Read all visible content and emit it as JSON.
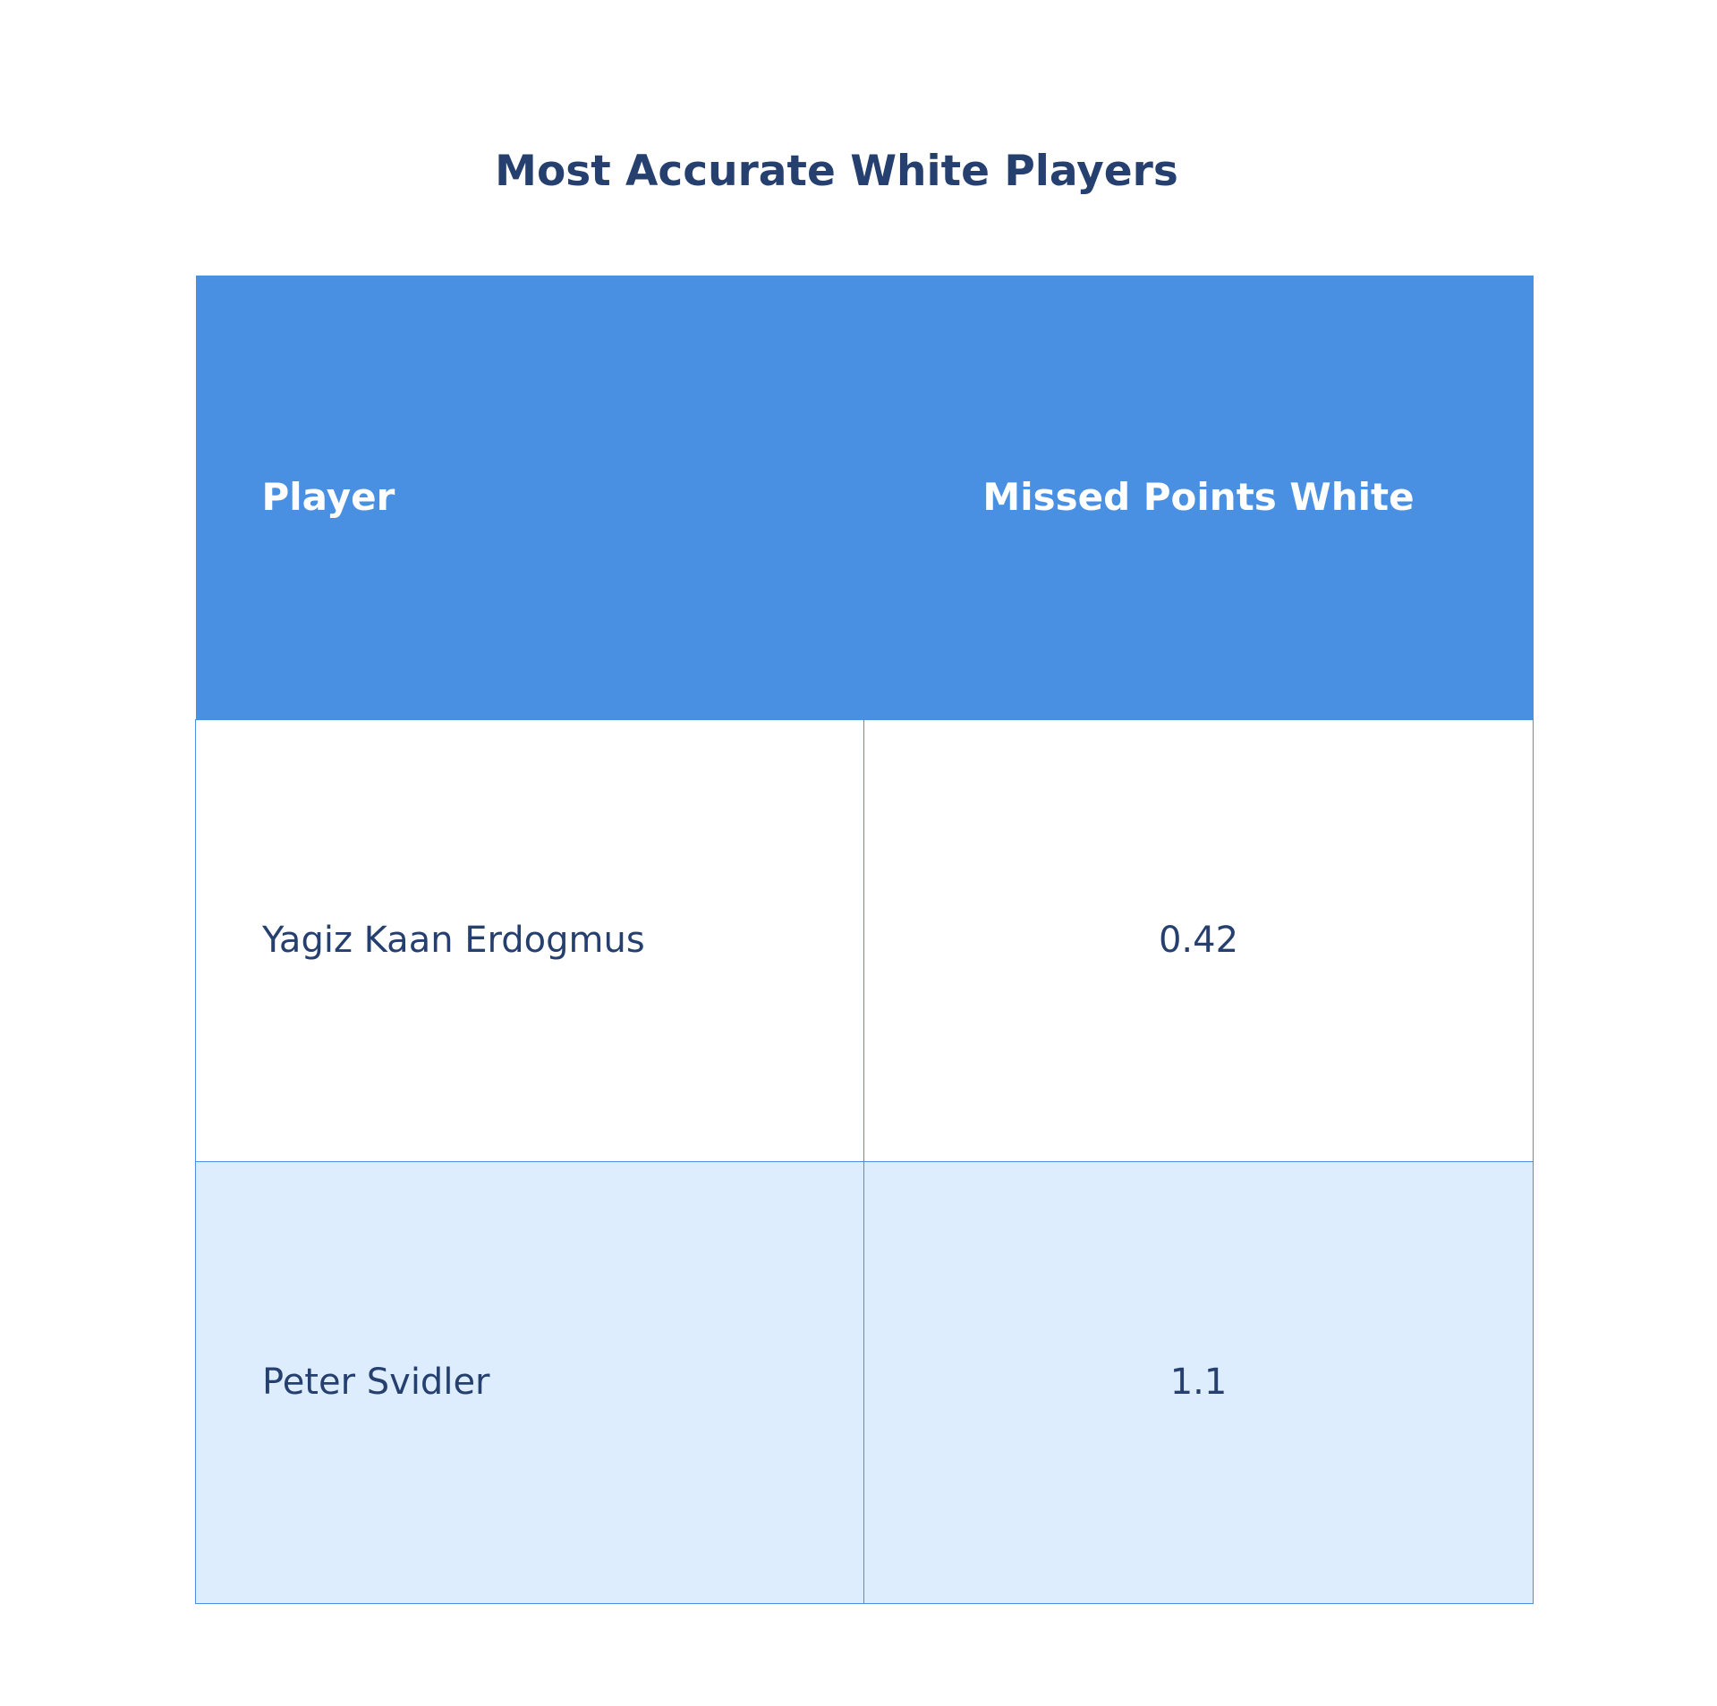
{
  "chart_data": {
    "type": "table",
    "title": "Most Accurate White Players",
    "columns": [
      "Player",
      "Missed Points White"
    ],
    "rows": [
      {
        "player": "Yagiz Kaan Erdogmus",
        "missed_points_white": "0.42"
      },
      {
        "player": "Peter Svidler",
        "missed_points_white": "1.1"
      }
    ],
    "colors": {
      "header_bg": "#4a90e2",
      "header_text": "#ffffff",
      "body_text": "#253f6e",
      "row_alt_bg": "#ddedfd",
      "border": "#4a90e2"
    }
  }
}
